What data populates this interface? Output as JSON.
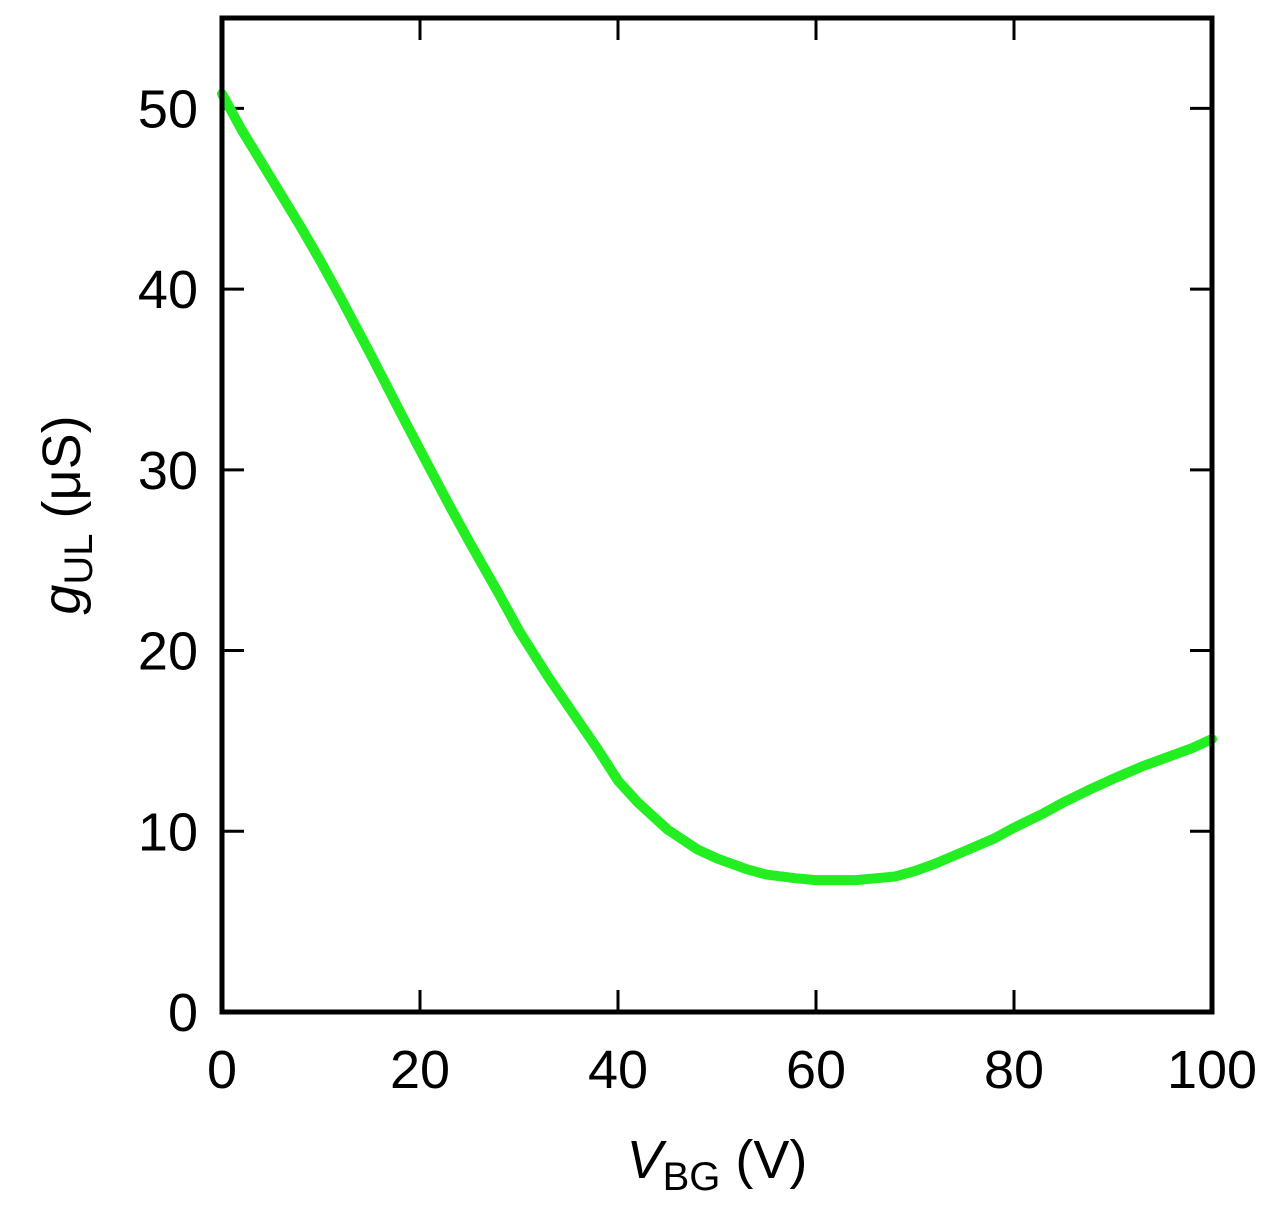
{
  "chart_data": {
    "type": "line",
    "xlabel": {
      "main": "V",
      "sub": "BG",
      "unit": " (V)"
    },
    "ylabel": {
      "main": "g",
      "sub": "UL",
      "unit": " (μS)"
    },
    "xlim": [
      0,
      100
    ],
    "ylim": [
      0,
      55
    ],
    "x_ticks": [
      0,
      20,
      40,
      60,
      80,
      100
    ],
    "x_tick_labels": [
      "0",
      "20",
      "40",
      "60",
      "80",
      "100"
    ],
    "y_ticks": [
      0,
      10,
      20,
      30,
      40,
      50
    ],
    "y_tick_labels": [
      "0",
      "10",
      "20",
      "30",
      "40",
      "50"
    ],
    "grid": false,
    "series": [
      {
        "color": "#22ee22",
        "x": [
          0,
          2,
          5,
          8,
          10,
          12,
          15,
          18,
          20,
          23,
          25,
          28,
          30,
          33,
          35,
          38,
          40,
          42,
          45,
          48,
          50,
          53,
          55,
          58,
          60,
          62,
          64,
          66,
          68,
          70,
          72,
          75,
          78,
          80,
          83,
          85,
          88,
          90,
          93,
          95,
          98,
          100
        ],
        "y": [
          50.8,
          48.8,
          46.1,
          43.4,
          41.5,
          39.5,
          36.4,
          33.2,
          31.1,
          28.0,
          26.0,
          23.1,
          21.1,
          18.5,
          16.9,
          14.5,
          12.8,
          11.6,
          10.1,
          9.0,
          8.5,
          7.9,
          7.6,
          7.4,
          7.3,
          7.3,
          7.3,
          7.4,
          7.5,
          7.8,
          8.2,
          8.9,
          9.6,
          10.2,
          11.0,
          11.6,
          12.4,
          12.9,
          13.6,
          14.0,
          14.6,
          15.1
        ]
      }
    ]
  }
}
